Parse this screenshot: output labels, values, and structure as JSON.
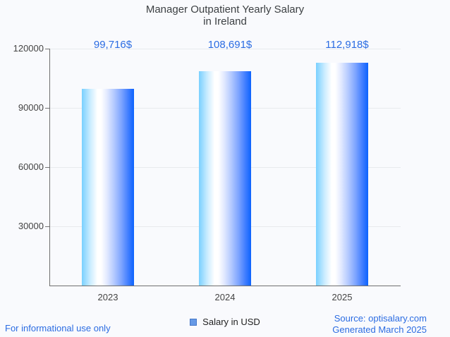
{
  "title": {
    "line1": "Manager Outpatient Yearly Salary",
    "line2": "in Ireland"
  },
  "chart_data": {
    "type": "bar",
    "title": "Manager Outpatient Yearly Salary in Ireland",
    "categories": [
      "2023",
      "2024",
      "2025"
    ],
    "series": [
      {
        "name": "Salary in USD",
        "values": [
          99716,
          108691,
          112918
        ]
      }
    ],
    "annotations": [
      "99,716$",
      "108,691$",
      "112,918$"
    ],
    "xlabel": "",
    "ylabel": "",
    "ylim": [
      0,
      120000
    ],
    "yticks": [
      30000,
      60000,
      90000,
      120000
    ],
    "ytick_labels": [
      "30000",
      "60000",
      "90000",
      "120000"
    ],
    "grid": true,
    "legend_position": "bottom"
  },
  "legend": {
    "label": "Salary in USD",
    "swatch_color": "#6699e6"
  },
  "footer": {
    "left": "For informational use only",
    "source": "Source: optisalary.com",
    "generated": "Generated March 2025"
  },
  "colors": {
    "annotation": "#2b6ce2",
    "link": "#2b6ce2",
    "bar_gradient_left": "#79d0ff",
    "bar_gradient_right": "#0c63fe",
    "axis_text": "#444444",
    "gridline": "#e8eaed",
    "axis_line": "#6f6f6f",
    "title_text": "#3c4043",
    "background": "#f9fafd",
    "legend_swatch": "#6699e6"
  }
}
